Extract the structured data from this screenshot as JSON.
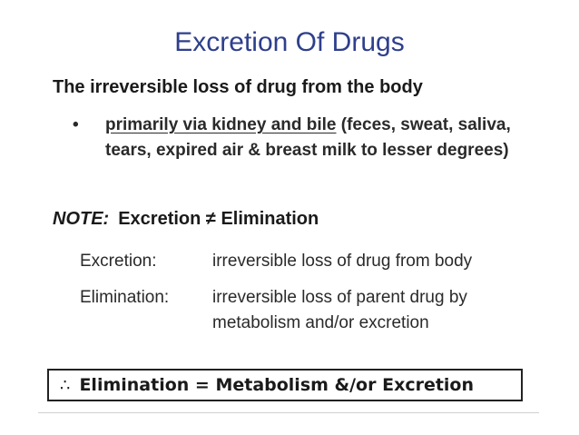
{
  "slide": {
    "title": "Excretion Of Drugs",
    "lead": "The irreversible loss of drug from the body",
    "bullet": {
      "marker": "•",
      "underlined": "primarily via kidney and bile",
      "rest": " (feces, sweat, saliva, tears, expired air & breast milk to lesser degrees)"
    },
    "note": {
      "label": "NOTE:",
      "text": "Excretion ≠ Elimination"
    },
    "definitions": [
      {
        "term": "Excretion:",
        "desc": "irreversible loss of drug from body"
      },
      {
        "term": "Elimination:",
        "desc": "irreversible loss of parent drug by metabolism and/or excretion"
      }
    ],
    "box": {
      "symbol": "∴",
      "text": "Elimination = Metabolism &/or Excretion"
    }
  },
  "colors": {
    "title": "#2e3f8c",
    "text": "#1a1a1a"
  }
}
